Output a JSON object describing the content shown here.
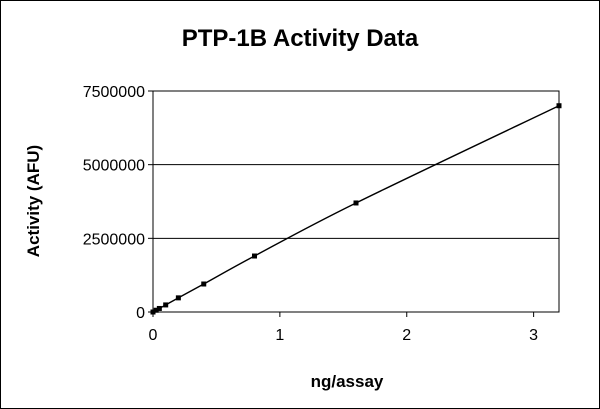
{
  "chart_data": {
    "type": "scatter",
    "title": "PTP-1B Activity Data",
    "xlabel": "ng/assay",
    "ylabel": "Activity (AFU)",
    "xlim": [
      0,
      3.2
    ],
    "ylim": [
      0,
      7500000
    ],
    "xticks": [
      "0",
      "1",
      "2",
      "3"
    ],
    "yticks": [
      "0",
      "2500000",
      "5000000",
      "7500000"
    ],
    "grid": "horizontal",
    "legend": "none",
    "series": [
      {
        "x": [
          0,
          0.025,
          0.05,
          0.1,
          0.2,
          0.4,
          0.8,
          1.6,
          3.2
        ],
        "y": [
          0,
          60000,
          120000,
          240000,
          480000,
          950000,
          1900000,
          3700000,
          7000000
        ],
        "marker": "square",
        "line": "smooth",
        "color": "#000000"
      }
    ]
  }
}
